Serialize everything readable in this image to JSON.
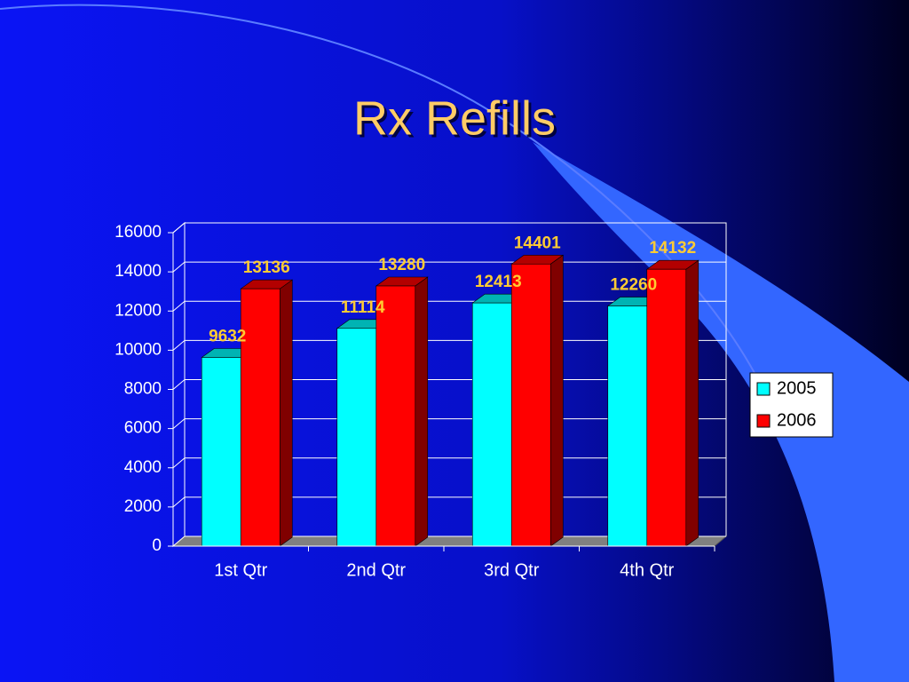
{
  "chart_data": {
    "type": "bar3d",
    "title": "Rx Refills",
    "categories": [
      "1st Qtr",
      "2nd Qtr",
      "3rd Qtr",
      "4th Qtr"
    ],
    "series": [
      {
        "name": "2005",
        "color": "#00ffff",
        "values": [
          9632,
          11114,
          12413,
          12260
        ]
      },
      {
        "name": "2006",
        "color": "#ff0000",
        "values": [
          13136,
          13280,
          14401,
          14132
        ]
      }
    ],
    "ylim": [
      0,
      16000
    ],
    "yticks": [
      0,
      2000,
      4000,
      6000,
      8000,
      10000,
      12000,
      14000,
      16000
    ],
    "grid": true,
    "legend": "right",
    "value_label_color": "#ffcc33"
  }
}
